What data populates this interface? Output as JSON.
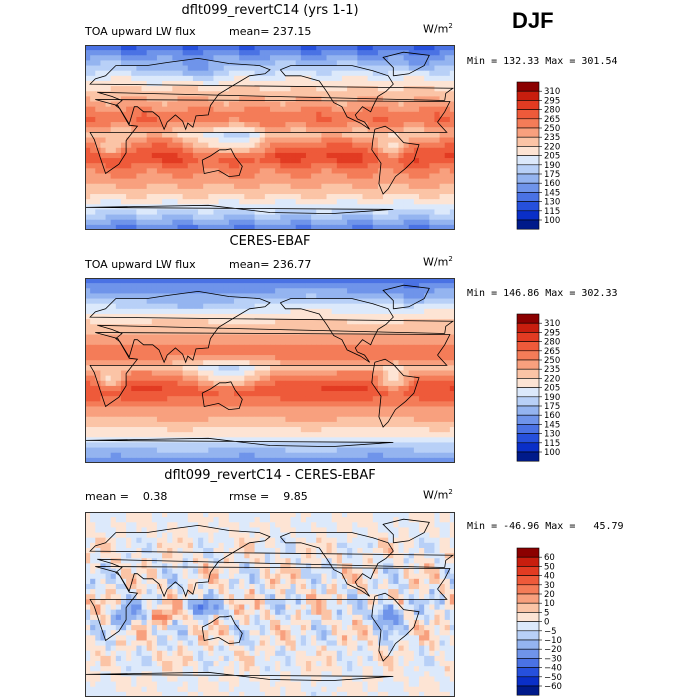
{
  "season": "DJF",
  "panels": [
    {
      "title": "dflt099_revertC14 (yrs 1-1)",
      "left_label": "TOA upward LW flux",
      "mid_label": "mean= 237.15",
      "units": "W/m",
      "units_sup": "2",
      "minmax": "Min = 132.33 Max = 301.54"
    },
    {
      "title": "CERES-EBAF",
      "left_label": "TOA upward LW flux",
      "mid_label": "mean= 236.77",
      "units": "W/m",
      "units_sup": "2",
      "minmax": "Min = 146.86 Max = 302.33"
    },
    {
      "title": "dflt099_revertC14 - CERES-EBAF",
      "left_label": "mean =    0.38",
      "mid_label": "rmse =    9.85",
      "units": "W/m",
      "units_sup": "2",
      "minmax": "Min = -46.96 Max =   45.79"
    }
  ],
  "chart_data": [
    {
      "type": "heatmap",
      "title": "dflt099_revertC14 (yrs 1-1)",
      "variable": "TOA upward LW flux",
      "mean": 237.15,
      "min": 132.33,
      "max": 301.54,
      "units": "W/m2",
      "colorbar_levels": [
        "310",
        "295",
        "280",
        "265",
        "250",
        "235",
        "220",
        "205",
        "190",
        "175",
        "160",
        "145",
        "130",
        "115",
        "100"
      ],
      "colorbar_colors": [
        "#8b0000",
        "#c81e0e",
        "#e23b22",
        "#ee5a3a",
        "#f47c58",
        "#f8a07e",
        "#fbc4a6",
        "#fde4d4",
        "#dce9fb",
        "#b8d0f7",
        "#94b4f0",
        "#6f94ea",
        "#4a72e4",
        "#2650dc",
        "#0a2fc8",
        "#001a8a"
      ]
    },
    {
      "type": "heatmap",
      "title": "CERES-EBAF",
      "variable": "TOA upward LW flux",
      "mean": 236.77,
      "min": 146.86,
      "max": 302.33,
      "units": "W/m2",
      "colorbar_levels": [
        "310",
        "295",
        "280",
        "265",
        "250",
        "235",
        "220",
        "205",
        "190",
        "175",
        "160",
        "145",
        "130",
        "115",
        "100"
      ],
      "colorbar_colors": [
        "#8b0000",
        "#c81e0e",
        "#e23b22",
        "#ee5a3a",
        "#f47c58",
        "#f8a07e",
        "#fbc4a6",
        "#fde4d4",
        "#dce9fb",
        "#b8d0f7",
        "#94b4f0",
        "#6f94ea",
        "#4a72e4",
        "#2650dc",
        "#0a2fc8",
        "#001a8a"
      ]
    },
    {
      "type": "heatmap",
      "title": "dflt099_revertC14 - CERES-EBAF",
      "mean": 0.38,
      "rmse": 9.85,
      "min": -46.96,
      "max": 45.79,
      "units": "W/m2",
      "colorbar_levels": [
        "60",
        "50",
        "40",
        "30",
        "20",
        "10",
        "5",
        "0",
        "−5",
        "−10",
        "−20",
        "−30",
        "−40",
        "−50",
        "−60"
      ],
      "colorbar_colors": [
        "#8b0000",
        "#c81e0e",
        "#e23b22",
        "#ee5a3a",
        "#f47c58",
        "#f8a07e",
        "#fbc4a6",
        "#fde4d4",
        "#dce9fb",
        "#b8d0f7",
        "#94b4f0",
        "#6f94ea",
        "#4a72e4",
        "#2650dc",
        "#0a2fc8",
        "#001a8a"
      ]
    }
  ]
}
